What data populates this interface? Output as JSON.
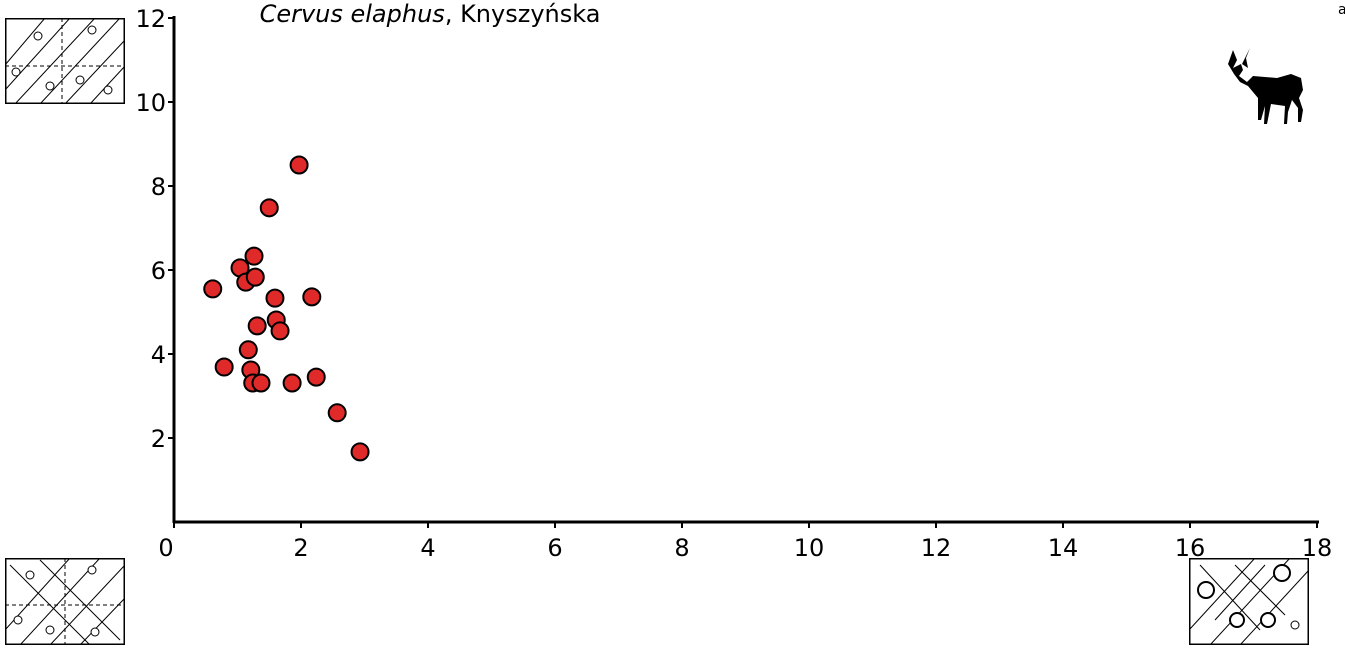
{
  "chart_data": {
    "type": "scatter",
    "title": [
      "Cervus elaphus",
      ", Knyszyńska"
    ],
    "corner_label": "a",
    "color": "#e02a2a",
    "x": [
      0.61,
      0.79,
      1.04,
      1.13,
      1.26,
      1.28,
      1.17,
      1.21,
      1.24,
      1.31,
      1.37,
      1.5,
      1.59,
      1.61,
      1.67,
      1.86,
      1.97,
      2.17,
      2.24,
      2.57,
      2.93
    ],
    "values": [
      5.55,
      3.69,
      6.05,
      5.71,
      6.33,
      5.83,
      4.1,
      3.62,
      3.31,
      4.67,
      3.31,
      7.48,
      5.33,
      4.81,
      4.55,
      3.31,
      8.5,
      5.36,
      3.45,
      2.6,
      1.67
    ],
    "xlim": [
      0,
      18
    ],
    "ylim": [
      0,
      12
    ],
    "xticks": [
      0,
      2,
      4,
      6,
      8,
      10,
      12,
      14,
      16,
      18
    ],
    "yticks": [
      2,
      4,
      6,
      8,
      10,
      12
    ]
  }
}
